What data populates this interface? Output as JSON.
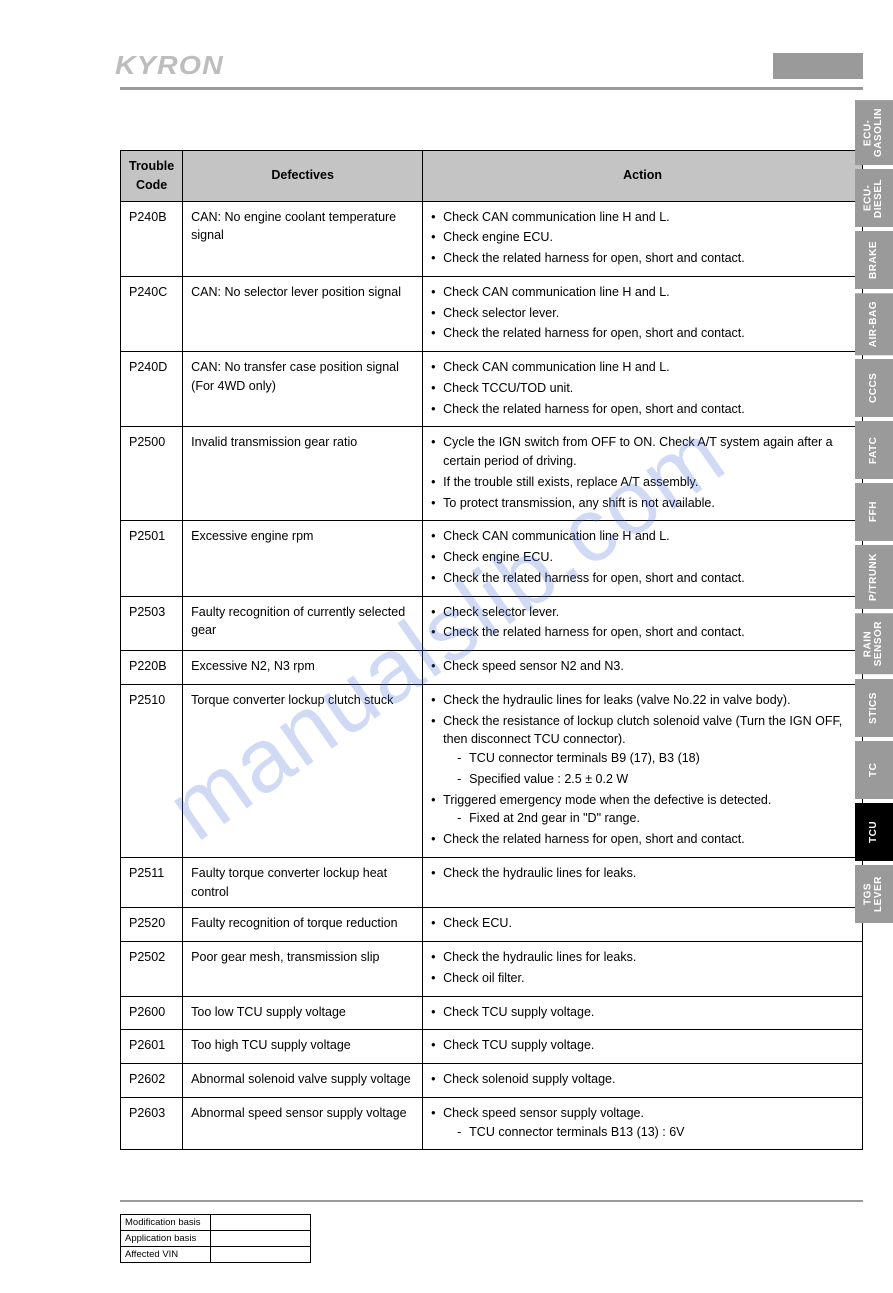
{
  "watermark": "manualslib.com",
  "brand": "KYRON",
  "table": {
    "headers": {
      "code": "Trouble Code",
      "def": "Defectives",
      "action": "Action"
    },
    "rows": [
      {
        "code": "P240B",
        "def": "CAN: No engine coolant temperature signal",
        "actions": [
          "Check CAN communication line H and L.",
          "Check engine ECU.",
          "Check the related harness for open, short and contact."
        ]
      },
      {
        "code": "P240C",
        "def": "CAN: No selector lever position signal",
        "actions": [
          "Check CAN communication line H and L.",
          "Check selector lever.",
          "Check the related harness for open, short and contact."
        ]
      },
      {
        "code": "P240D",
        "def": "CAN: No transfer case position signal (For 4WD only)",
        "actions": [
          "Check CAN communication line H and L.",
          "Check TCCU/TOD unit.",
          "Check the related harness for open, short and contact."
        ]
      },
      {
        "code": "P2500",
        "def": "Invalid transmission gear ratio",
        "actions": [
          "Cycle the IGN switch from OFF to ON. Check A/T system again after a certain period of driving.",
          "If the trouble still exists, replace A/T assembly.",
          "To protect transmission, any shift is not available."
        ]
      },
      {
        "code": "P2501",
        "def": "Excessive engine rpm",
        "actions": [
          "Check CAN communication line H and L.",
          "Check engine ECU.",
          "Check the related harness for open, short and contact."
        ]
      },
      {
        "code": "P2503",
        "def": "Faulty recognition of currently selected gear",
        "actions": [
          "Check selector lever.",
          "Check the related harness for open, short and contact."
        ]
      },
      {
        "code": "P220B",
        "def": "Excessive N2, N3 rpm",
        "actions": [
          "Check speed sensor N2 and N3."
        ]
      },
      {
        "code": "P2510",
        "def": "Torque converter lockup clutch stuck",
        "actions": [
          "Check the hydraulic lines for leaks (valve No.22 in valve body).",
          {
            "text": "Check the resistance of lockup clutch solenoid valve (Turn the IGN OFF, then disconnect TCU connector).",
            "sub": [
              "TCU connector terminals B9 (17), B3 (18)",
              "Specified value : 2.5 ± 0.2 W"
            ]
          },
          {
            "text": "Triggered emergency mode when the defective is detected.",
            "sub": [
              "Fixed at 2nd gear in \"D\" range."
            ]
          },
          "Check the related harness for open, short and contact."
        ]
      },
      {
        "code": "P2511",
        "def": "Faulty torque converter lockup heat control",
        "actions": [
          "Check the hydraulic lines for leaks."
        ]
      },
      {
        "code": "P2520",
        "def": "Faulty recognition of torque reduction",
        "actions": [
          "Check ECU."
        ]
      },
      {
        "code": "P2502",
        "def": "Poor gear mesh, transmission slip",
        "actions": [
          "Check the hydraulic lines for leaks.",
          "Check oil filter."
        ]
      },
      {
        "code": "P2600",
        "def": "Too low TCU supply voltage",
        "actions": [
          "Check TCU supply voltage."
        ]
      },
      {
        "code": "P2601",
        "def": "Too high TCU supply voltage",
        "actions": [
          "Check TCU supply voltage."
        ]
      },
      {
        "code": "P2602",
        "def": "Abnormal solenoid valve supply voltage",
        "actions": [
          "Check solenoid supply voltage."
        ]
      },
      {
        "code": "P2603",
        "def": "Abnormal speed sensor supply voltage",
        "actions": [
          {
            "text": "Check speed sensor supply voltage.",
            "sub": [
              "TCU connector terminals B13 (13) : 6V"
            ]
          }
        ]
      }
    ]
  },
  "side_tabs": [
    {
      "label": "ECU-\nGASOLIN",
      "active": false
    },
    {
      "label": "ECU-\nDIESEL",
      "active": false
    },
    {
      "label": "BRAKE",
      "active": false
    },
    {
      "label": "AIR-BAG",
      "active": false
    },
    {
      "label": "CCCS",
      "active": false
    },
    {
      "label": "FATC",
      "active": false
    },
    {
      "label": "FFH",
      "active": false
    },
    {
      "label": "P/TRUNK",
      "active": false
    },
    {
      "label": "RAIN\nSENSOR",
      "active": false
    },
    {
      "label": "STICS",
      "active": false
    },
    {
      "label": "TC",
      "active": false
    },
    {
      "label": "TCU",
      "active": true
    },
    {
      "label": "TGS\nLEVER",
      "active": false
    }
  ],
  "footer": {
    "rows": [
      "Modification basis",
      "Application basis",
      "Affected VIN"
    ]
  }
}
